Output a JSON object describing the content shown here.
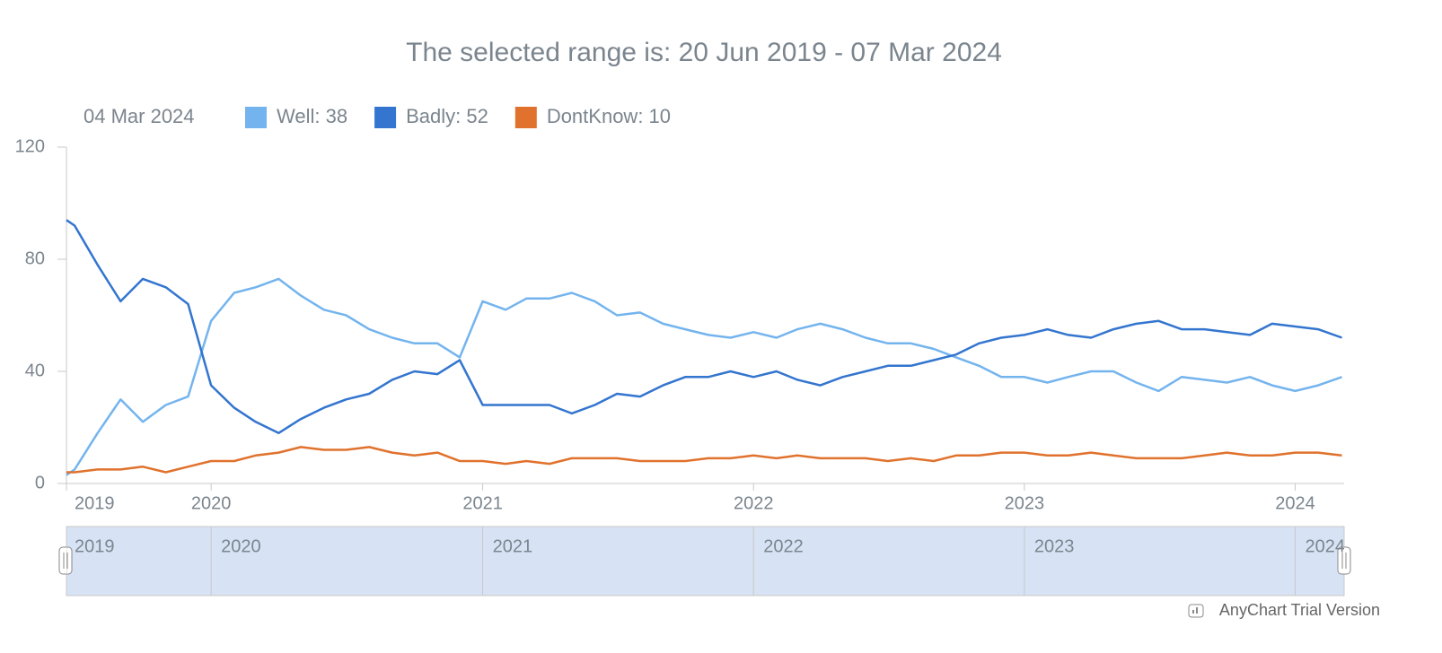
{
  "chart_data": {
    "type": "line",
    "title": "The selected range is: 20 Jun 2019 - 07 Mar 2024",
    "legend_date": "04 Mar 2024",
    "legend_labels": [
      "Well: 38",
      "Badly: 52",
      "DontKnow: 10"
    ],
    "watermark": "AnyChart Trial Version",
    "x": [
      "2019-06-20",
      "2019-07",
      "2019-08",
      "2019-09",
      "2019-10",
      "2019-11",
      "2019-12",
      "2020-01",
      "2020-02",
      "2020-03",
      "2020-04",
      "2020-05",
      "2020-06",
      "2020-07",
      "2020-08",
      "2020-09",
      "2020-10",
      "2020-11",
      "2020-12",
      "2021-01",
      "2021-02",
      "2021-03",
      "2021-04",
      "2021-05",
      "2021-06",
      "2021-07",
      "2021-08",
      "2021-09",
      "2021-10",
      "2021-11",
      "2021-12",
      "2022-01",
      "2022-02",
      "2022-03",
      "2022-04",
      "2022-05",
      "2022-06",
      "2022-07",
      "2022-08",
      "2022-09",
      "2022-10",
      "2022-11",
      "2022-12",
      "2023-01",
      "2023-02",
      "2023-03",
      "2023-04",
      "2023-05",
      "2023-06",
      "2023-07",
      "2023-08",
      "2023-09",
      "2023-10",
      "2023-11",
      "2023-12",
      "2024-01",
      "2024-02",
      "2024-03-04"
    ],
    "series": [
      {
        "name": "Well",
        "color": "#74b4ee",
        "values": [
          3,
          5,
          18,
          30,
          22,
          28,
          31,
          58,
          68,
          70,
          73,
          67,
          62,
          60,
          55,
          52,
          50,
          50,
          45,
          65,
          62,
          66,
          66,
          68,
          65,
          60,
          61,
          57,
          55,
          53,
          52,
          54,
          52,
          55,
          57,
          55,
          52,
          50,
          50,
          48,
          45,
          42,
          38,
          38,
          36,
          38,
          40,
          40,
          36,
          33,
          38,
          37,
          36,
          38,
          35,
          33,
          35,
          38
        ]
      },
      {
        "name": "Badly",
        "color": "#3375cf",
        "values": [
          94,
          92,
          78,
          65,
          73,
          70,
          64,
          35,
          27,
          22,
          18,
          23,
          27,
          30,
          32,
          37,
          40,
          39,
          44,
          28,
          28,
          28,
          28,
          25,
          28,
          32,
          31,
          35,
          38,
          38,
          40,
          38,
          40,
          37,
          35,
          38,
          40,
          42,
          42,
          44,
          46,
          50,
          52,
          53,
          55,
          53,
          52,
          55,
          57,
          58,
          55,
          55,
          54,
          53,
          57,
          56,
          55,
          52
        ]
      },
      {
        "name": "DontKnow",
        "color": "#e0722d",
        "values": [
          4,
          4,
          5,
          5,
          6,
          4,
          6,
          8,
          8,
          10,
          11,
          13,
          12,
          12,
          13,
          11,
          10,
          11,
          8,
          8,
          7,
          8,
          7,
          9,
          9,
          9,
          8,
          8,
          8,
          9,
          9,
          10,
          9,
          10,
          9,
          9,
          9,
          8,
          9,
          8,
          10,
          10,
          11,
          11,
          10,
          10,
          11,
          10,
          9,
          9,
          9,
          10,
          11,
          10,
          10,
          11,
          11,
          10
        ]
      }
    ],
    "xlim": [
      "2019-06-20",
      "2024-03-07"
    ],
    "xticks": [
      {
        "value": "2019-06-20",
        "label": "2019"
      },
      "2020",
      "2021",
      "2022",
      "2023",
      "2024"
    ],
    "ylim": [
      0,
      120
    ],
    "yticks": [
      0,
      40,
      80,
      120
    ],
    "grid": false
  }
}
